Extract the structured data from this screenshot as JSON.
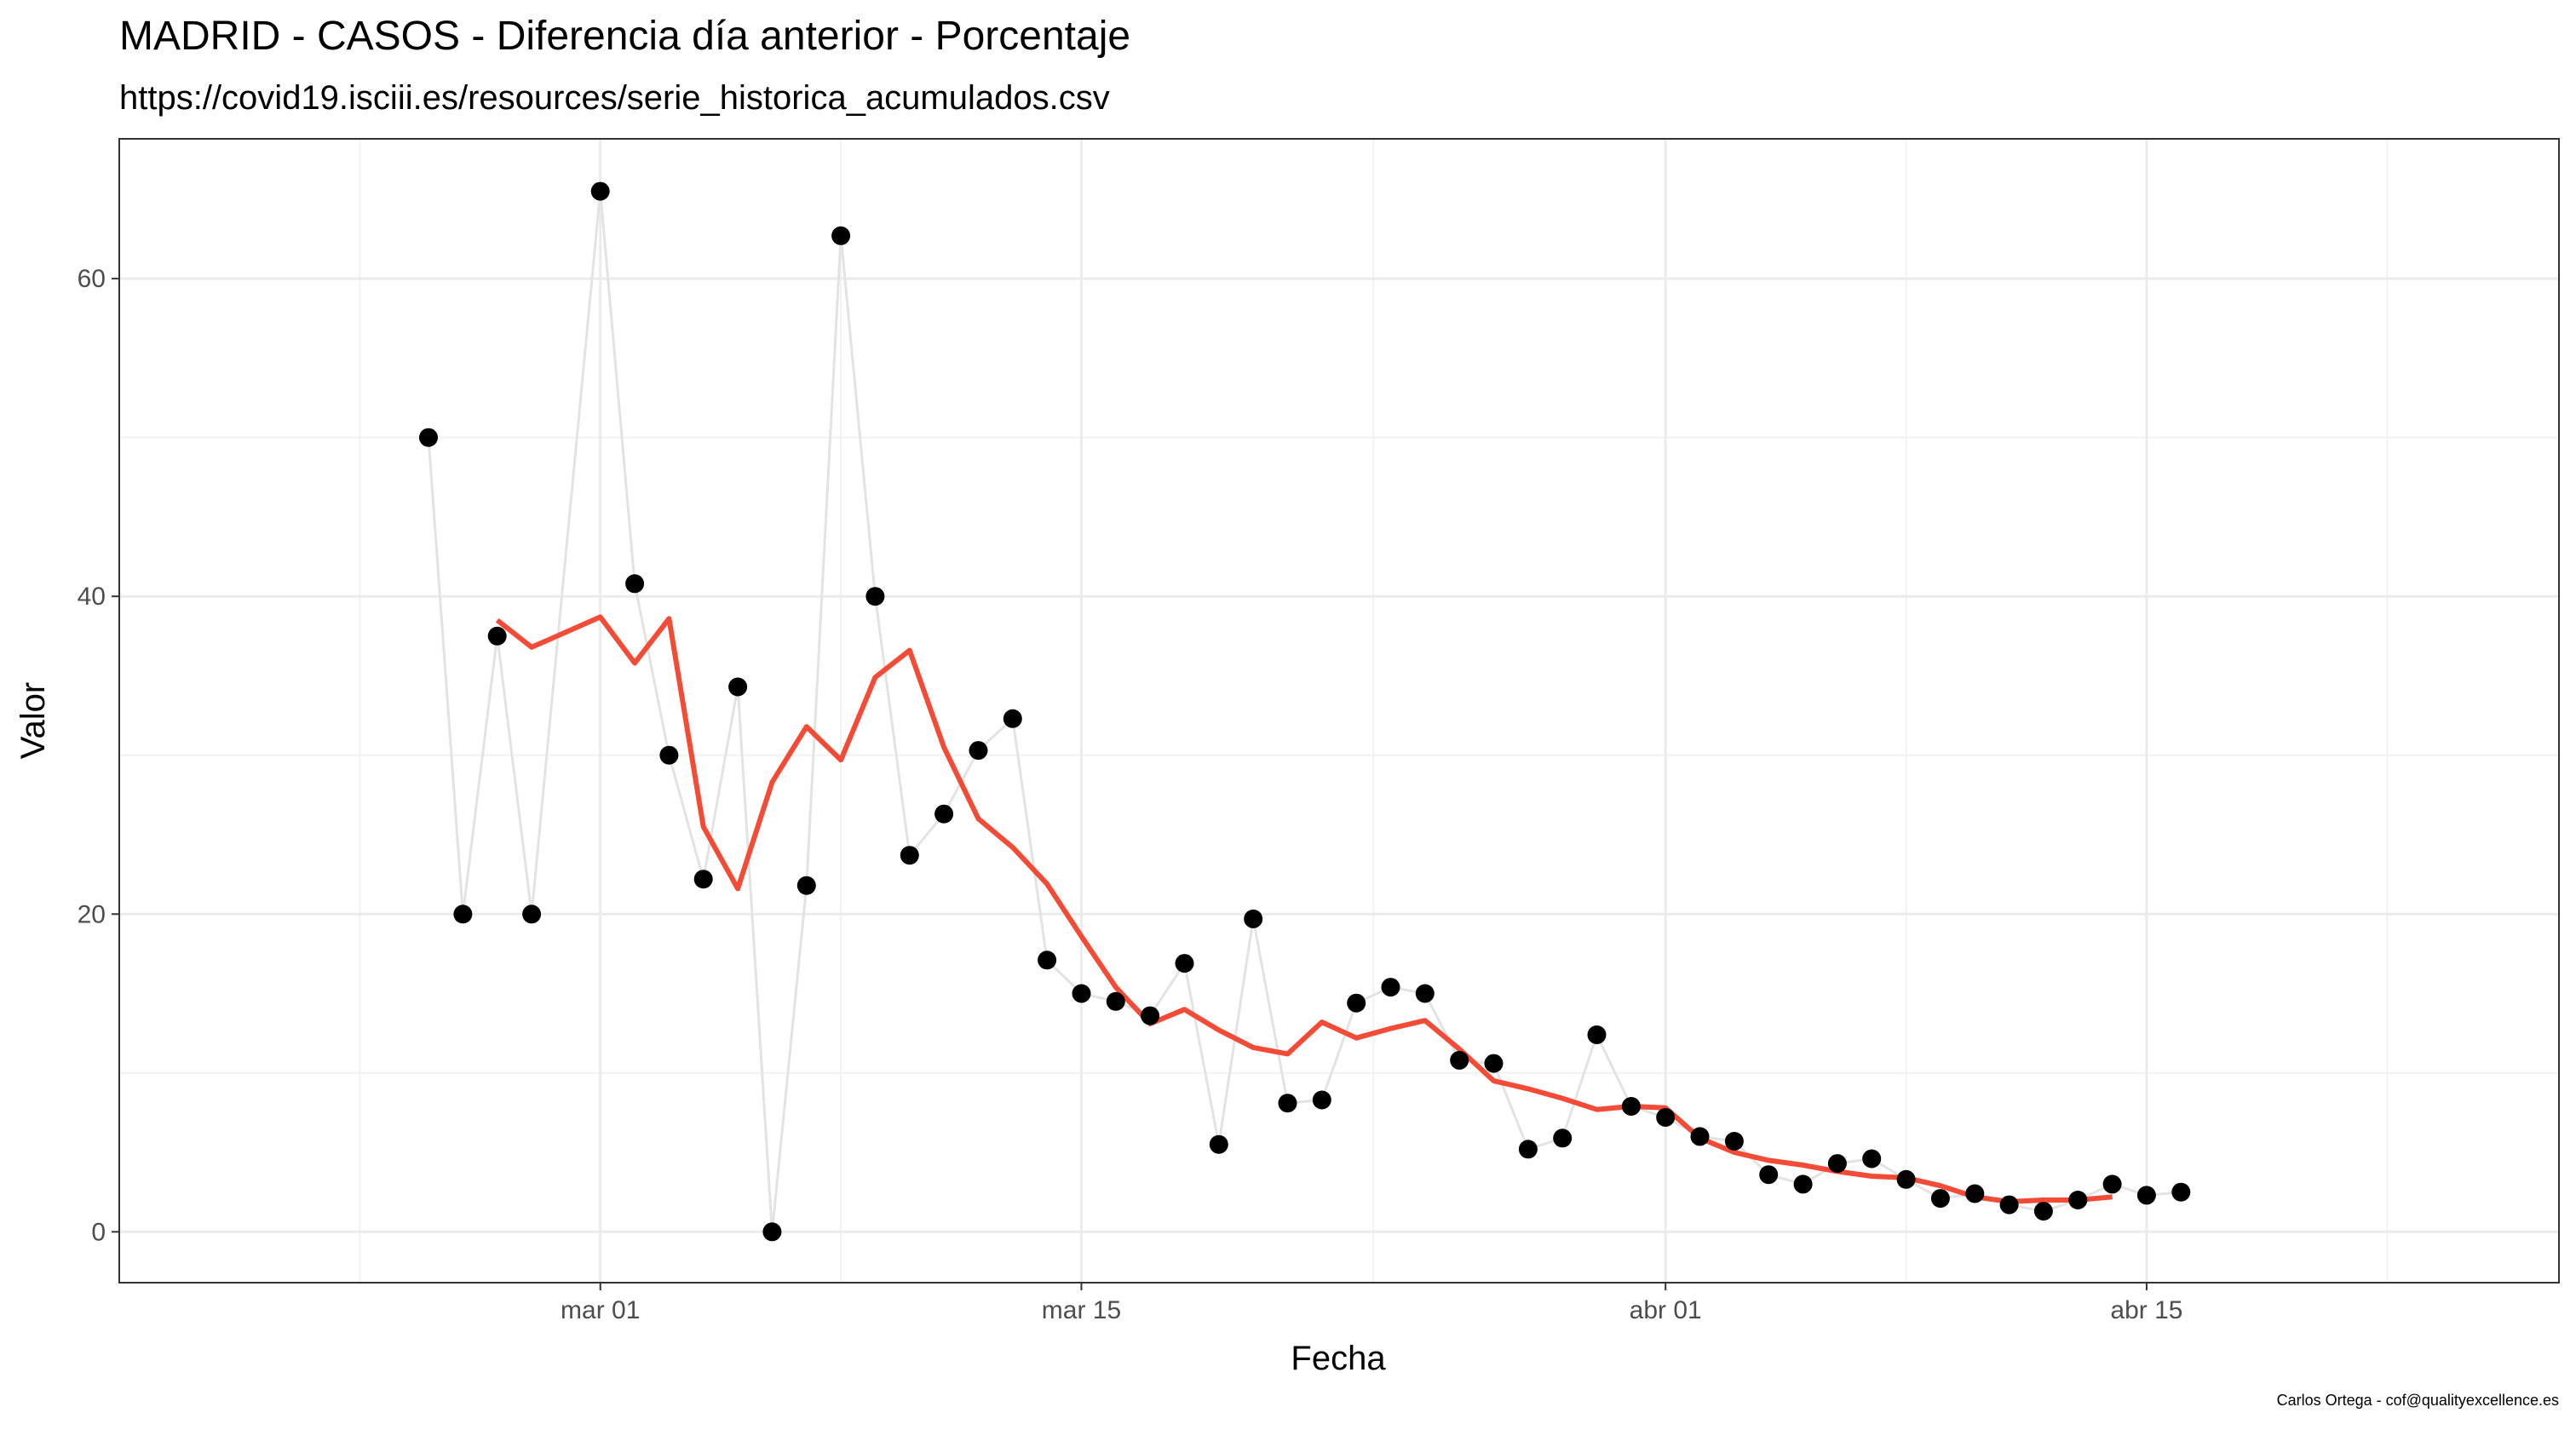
{
  "chart_data": {
    "type": "scatter",
    "title": "MADRID - CASOS - Diferencia día anterior - Porcentaje",
    "subtitle": "https://covid19.isciii.es/resources/serie_historica_acumulados.csv",
    "xlabel": "Fecha",
    "ylabel": "Valor",
    "caption": "Carlos Ortega - cof@qualityexcellence.es",
    "grid": true,
    "xlim": [
      "2020-02-16",
      "2020-04-27"
    ],
    "ylim": [
      -3.2,
      68.8
    ],
    "x_ticks": [
      {
        "date": "2020-03-01",
        "label": "mar 01"
      },
      {
        "date": "2020-03-15",
        "label": "mar 15"
      },
      {
        "date": "2020-04-01",
        "label": "abr 01"
      },
      {
        "date": "2020-04-15",
        "label": "abr 15"
      }
    ],
    "y_ticks": [
      {
        "value": 0,
        "label": "0"
      },
      {
        "value": 20,
        "label": "20"
      },
      {
        "value": 40,
        "label": "40"
      },
      {
        "value": 60,
        "label": "60"
      }
    ],
    "colors": {
      "points": "#000000",
      "raw_line": "#e3e3e3",
      "smooth_line": "#f44b36",
      "major_grid": "#ebebeb",
      "minor_grid": "#f2f2f2",
      "panel_border": "#333333"
    },
    "series": [
      {
        "kind": "points",
        "x": [
          "2020-02-25",
          "2020-02-26",
          "2020-02-27",
          "2020-02-28",
          "2020-03-01",
          "2020-03-02",
          "2020-03-03",
          "2020-03-04",
          "2020-03-05",
          "2020-03-06",
          "2020-03-07",
          "2020-03-08",
          "2020-03-09",
          "2020-03-10",
          "2020-03-11",
          "2020-03-12",
          "2020-03-13",
          "2020-03-14",
          "2020-03-15",
          "2020-03-16",
          "2020-03-17",
          "2020-03-18",
          "2020-03-19",
          "2020-03-20",
          "2020-03-21",
          "2020-03-22",
          "2020-03-23",
          "2020-03-24",
          "2020-03-25",
          "2020-03-26",
          "2020-03-27",
          "2020-03-28",
          "2020-03-29",
          "2020-03-30",
          "2020-03-31",
          "2020-04-01",
          "2020-04-02",
          "2020-04-03",
          "2020-04-04",
          "2020-04-05",
          "2020-04-06",
          "2020-04-07",
          "2020-04-08",
          "2020-04-09",
          "2020-04-10",
          "2020-04-11",
          "2020-04-12",
          "2020-04-13",
          "2020-04-14",
          "2020-04-15",
          "2020-04-16"
        ],
        "y": [
          50,
          20,
          37.5,
          20,
          65.5,
          40.8,
          30,
          22.2,
          34.3,
          0,
          21.8,
          62.7,
          40,
          23.7,
          26.3,
          30.3,
          32.3,
          17.1,
          15,
          14.5,
          13.6,
          16.9,
          5.5,
          19.7,
          8.1,
          8.3,
          14.4,
          15.4,
          15,
          10.8,
          10.6,
          5.2,
          5.9,
          12.4,
          7.9,
          7.2,
          6,
          5.7,
          3.6,
          3,
          4.3,
          4.6,
          3.3,
          2.1,
          2.4,
          1.7,
          1.3,
          2,
          3,
          2.3,
          2.5
        ]
      },
      {
        "kind": "smooth",
        "x": [
          "2020-02-27",
          "2020-02-28",
          "2020-03-01",
          "2020-03-02",
          "2020-03-03",
          "2020-03-04",
          "2020-03-05",
          "2020-03-06",
          "2020-03-07",
          "2020-03-08",
          "2020-03-09",
          "2020-03-10",
          "2020-03-11",
          "2020-03-12",
          "2020-03-13",
          "2020-03-14",
          "2020-03-15",
          "2020-03-16",
          "2020-03-17",
          "2020-03-18",
          "2020-03-19",
          "2020-03-20",
          "2020-03-21",
          "2020-03-22",
          "2020-03-23",
          "2020-03-24",
          "2020-03-25",
          "2020-03-26",
          "2020-03-27",
          "2020-03-28",
          "2020-03-29",
          "2020-03-30",
          "2020-03-31",
          "2020-04-01",
          "2020-04-02",
          "2020-04-03",
          "2020-04-04",
          "2020-04-05",
          "2020-04-06",
          "2020-04-07",
          "2020-04-08",
          "2020-04-09",
          "2020-04-10",
          "2020-04-11",
          "2020-04-12",
          "2020-04-13",
          "2020-04-14"
        ],
        "y": [
          38.5,
          36.8,
          38.7,
          35.8,
          38.6,
          25.5,
          21.6,
          28.3,
          31.8,
          29.7,
          34.9,
          36.6,
          30.5,
          26,
          24.2,
          21.9,
          18.6,
          15.4,
          13.1,
          14,
          12.7,
          11.6,
          11.2,
          13.2,
          12.2,
          12.8,
          13.3,
          11.5,
          9.5,
          9,
          8.4,
          7.7,
          7.9,
          7.8,
          5.9,
          5,
          4.5,
          4.2,
          3.8,
          3.5,
          3.4,
          2.9,
          2.2,
          1.9,
          2,
          2,
          2.2
        ]
      }
    ]
  }
}
